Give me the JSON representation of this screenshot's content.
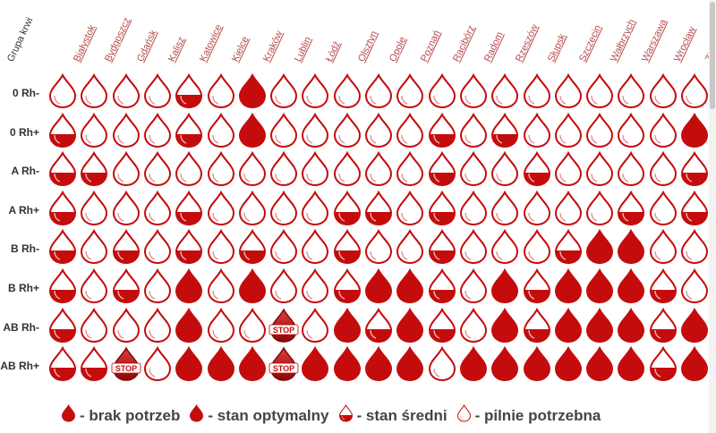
{
  "header": {
    "group_label": "Grupa krwi"
  },
  "cities": [
    "Białystok",
    "Bydgoszcz",
    "Gdańsk",
    "Kalisz",
    "Katowice",
    "Kielce",
    "Kraków",
    "Lublin",
    "Łódź",
    "Olsztyn",
    "Opole",
    "Poznań",
    "Racibórz",
    "Radom",
    "Rzeszów",
    "Słupsk",
    "Szczecin",
    "Wałbrzych",
    "Warszawa",
    "Wrocław",
    "Zielona Góra"
  ],
  "rows": [
    {
      "label": "0 Rh-",
      "states": [
        "P",
        "P",
        "P",
        "P",
        "M",
        "P",
        "F",
        "P",
        "P",
        "P",
        "P",
        "P",
        "P",
        "P",
        "P",
        "P",
        "P",
        "P",
        "P",
        "P",
        "P"
      ]
    },
    {
      "label": "0 Rh+",
      "states": [
        "M",
        "P",
        "P",
        "P",
        "M",
        "P",
        "F",
        "P",
        "P",
        "P",
        "P",
        "P",
        "M",
        "P",
        "M",
        "P",
        "P",
        "P",
        "P",
        "P",
        "F"
      ]
    },
    {
      "label": "A Rh-",
      "states": [
        "M",
        "M",
        "P",
        "P",
        "P",
        "P",
        "P",
        "P",
        "P",
        "P",
        "P",
        "P",
        "M",
        "P",
        "P",
        "M",
        "P",
        "P",
        "P",
        "P",
        "M"
      ]
    },
    {
      "label": "A Rh+",
      "states": [
        "M",
        "P",
        "P",
        "P",
        "M",
        "P",
        "P",
        "P",
        "P",
        "M",
        "M",
        "P",
        "M",
        "P",
        "P",
        "P",
        "P",
        "P",
        "M",
        "P",
        "M"
      ]
    },
    {
      "label": "B Rh-",
      "states": [
        "M",
        "P",
        "M",
        "P",
        "M",
        "P",
        "M",
        "P",
        "P",
        "M",
        "P",
        "P",
        "M",
        "P",
        "P",
        "P",
        "M",
        "F",
        "F",
        "P",
        "P"
      ]
    },
    {
      "label": "B Rh+",
      "states": [
        "M",
        "P",
        "M",
        "P",
        "F",
        "P",
        "F",
        "P",
        "P",
        "M",
        "F",
        "F",
        "M",
        "P",
        "F",
        "M",
        "F",
        "F",
        "F",
        "M",
        "P"
      ]
    },
    {
      "label": "AB Rh-",
      "states": [
        "M",
        "P",
        "P",
        "P",
        "F",
        "P",
        "P",
        "S",
        "P",
        "F",
        "M",
        "F",
        "M",
        "P",
        "F",
        "M",
        "F",
        "F",
        "F",
        "M",
        "F"
      ]
    },
    {
      "label": "AB Rh+",
      "states": [
        "M",
        "M",
        "S",
        "P",
        "F",
        "F",
        "F",
        "S",
        "F",
        "F",
        "F",
        "F",
        "P",
        "F",
        "F",
        "F",
        "F",
        "F",
        "F",
        "M",
        "F"
      ]
    }
  ],
  "stop_label": "STOP",
  "legend": [
    {
      "state": "F",
      "label": "- brak potrzeb"
    },
    {
      "state": "O",
      "label": "- stan optymalny"
    },
    {
      "state": "M",
      "label": "- stan średni"
    },
    {
      "state": "P",
      "label": "- pilnie potrzebna"
    }
  ],
  "colors": {
    "drop": "#c40c0c",
    "link": "#b84a4a",
    "text": "#333333",
    "background": "#ffffff"
  },
  "icon_names": {
    "drop": "blood-drop-icon",
    "stop": "stop-drop-icon"
  }
}
